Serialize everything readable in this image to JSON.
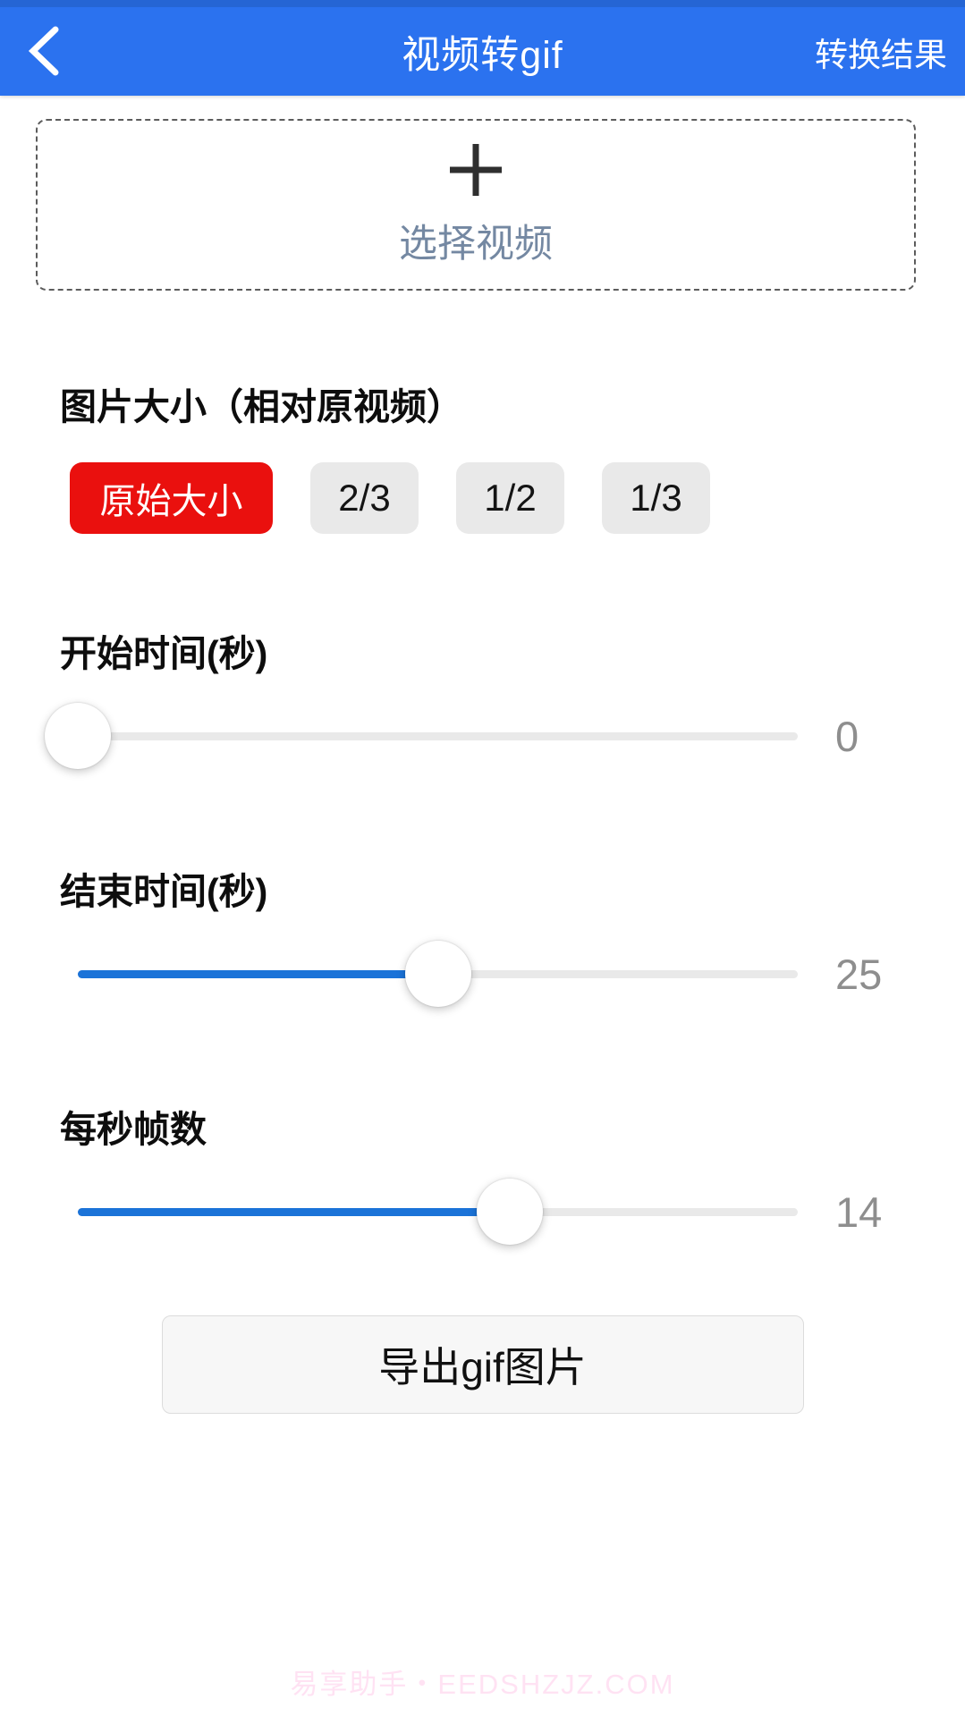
{
  "header": {
    "title": "视频转gif",
    "action_label": "转换结果",
    "back_icon": "chevron-left"
  },
  "picker": {
    "plus_icon": "plus",
    "label": "选择视频"
  },
  "size_section": {
    "label": "图片大小（相对原视频）",
    "options": [
      {
        "label": "原始大小",
        "selected": true
      },
      {
        "label": "2/3",
        "selected": false
      },
      {
        "label": "1/2",
        "selected": false
      },
      {
        "label": "1/3",
        "selected": false
      }
    ]
  },
  "sliders": [
    {
      "label": "开始时间(秒)",
      "value": "0",
      "percent": 0
    },
    {
      "label": "结束时间(秒)",
      "value": "25",
      "percent": 50
    },
    {
      "label": "每秒帧数",
      "value": "14",
      "percent": 60
    }
  ],
  "export_button": {
    "label": "导出gif图片"
  },
  "watermark": {
    "text": "易享助手・EEDSHZJZ.COM"
  },
  "colors": {
    "header_bg": "#2b72ef",
    "header_dark": "#2565d4",
    "accent_red": "#ea100e",
    "accent_blue": "#1b73d8",
    "track_gray": "#e9e9e9",
    "value_gray": "#8e8e8e",
    "picker_text": "#7488a2",
    "watermark_color": "#ffd9f0"
  }
}
